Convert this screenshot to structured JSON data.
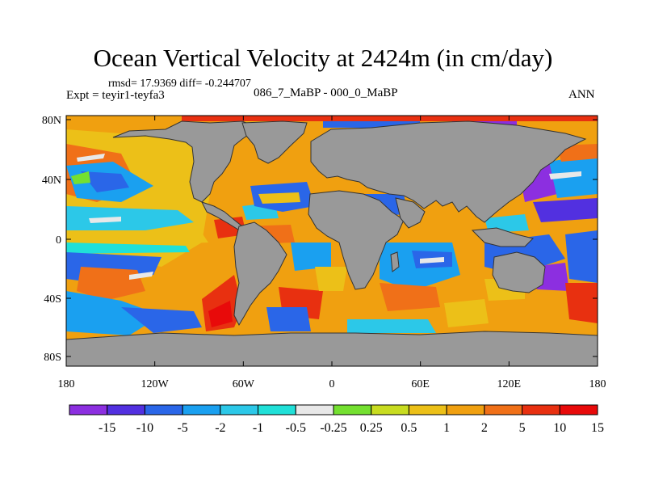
{
  "title": "Ocean Vertical Velocity at 2424m (in cm/day)",
  "stats": "rmsd= 17.9369 diff= -0.244707",
  "expt": "Expt = teyir1-teyfa3",
  "case_label": "086_7_MaBP - 000_0_MaBP",
  "season": "ANN",
  "colors": {
    "land": "#999999",
    "levels": [
      "#8c2fe0",
      "#5230e0",
      "#2a66e8",
      "#1aa0f0",
      "#2cc8e8",
      "#20e0d8",
      "#e8e8e8",
      "#74e030",
      "#c8dc20",
      "#ecc018",
      "#f0a010",
      "#f07018",
      "#e83010",
      "#e80a0a"
    ]
  },
  "map": {
    "lat_ticks": [
      "80N",
      "40N",
      "0",
      "40S",
      "80S"
    ],
    "lon_ticks": [
      "180",
      "120W",
      "60W",
      "0",
      "60E",
      "120E",
      "180"
    ]
  },
  "colorbar": {
    "labels": [
      "-15",
      "-10",
      "-5",
      "-2",
      "-1",
      "-0.5",
      "-0.25",
      "0.25",
      "0.5",
      "1",
      "2",
      "5",
      "10",
      "15"
    ]
  }
}
